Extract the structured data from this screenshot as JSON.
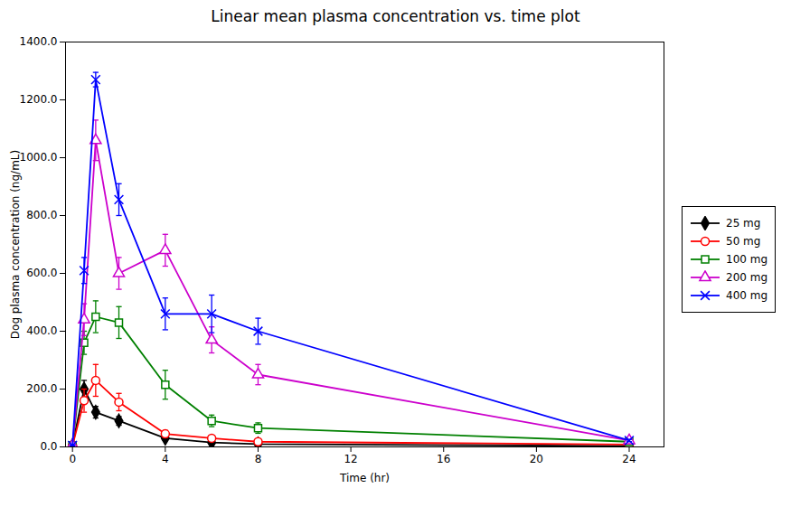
{
  "chart_data": {
    "type": "line",
    "title": "Linear mean plasma concentration vs. time plot",
    "xlabel": "Time (hr)",
    "ylabel": "Dog plasma concentration (ng/mL)",
    "xlim": [
      -0.3,
      25.5
    ],
    "ylim": [
      0,
      1400
    ],
    "xticks": [
      0,
      4,
      8,
      12,
      16,
      20,
      24
    ],
    "yticks": [
      {
        "value": 0,
        "label": "0.0"
      },
      {
        "value": 200,
        "label": "200.0"
      },
      {
        "value": 400,
        "label": "400.0"
      },
      {
        "value": 600,
        "label": "600.0"
      },
      {
        "value": 800,
        "label": "800.0"
      },
      {
        "value": 1000,
        "label": "1000.0"
      },
      {
        "value": 1200,
        "label": "1200.0"
      },
      {
        "value": 1400,
        "label": "1400.0"
      }
    ],
    "grid": false,
    "legend": "right",
    "x": [
      0,
      0.5,
      1,
      2,
      4,
      6,
      8,
      24
    ],
    "series": [
      {
        "name": "25 mg",
        "color": "#000000",
        "marker": "diamond-filled",
        "values": [
          5,
          200,
          120,
          90,
          30,
          15,
          10,
          3
        ],
        "yerr": [
          2,
          30,
          20,
          15,
          8,
          5,
          5,
          1
        ]
      },
      {
        "name": "50 mg",
        "color": "#ff0000",
        "marker": "circle-open",
        "values": [
          5,
          160,
          230,
          155,
          45,
          30,
          18,
          8
        ],
        "yerr": [
          2,
          40,
          55,
          30,
          12,
          8,
          5,
          2
        ]
      },
      {
        "name": "100 mg",
        "color": "#008000",
        "marker": "square-open",
        "values": [
          5,
          360,
          450,
          430,
          215,
          90,
          65,
          18
        ],
        "yerr": [
          2,
          40,
          55,
          55,
          50,
          20,
          18,
          4
        ]
      },
      {
        "name": "200 mg",
        "color": "#cc00cc",
        "marker": "triangle-open",
        "values": [
          5,
          440,
          1060,
          600,
          680,
          370,
          250,
          22
        ],
        "yerr": [
          2,
          55,
          70,
          55,
          55,
          45,
          35,
          4
        ]
      },
      {
        "name": "400 mg",
        "color": "#0000ff",
        "marker": "x",
        "values": [
          5,
          610,
          1270,
          855,
          460,
          460,
          400,
          22
        ],
        "yerr": [
          2,
          45,
          25,
          55,
          55,
          65,
          45,
          4
        ]
      }
    ]
  }
}
